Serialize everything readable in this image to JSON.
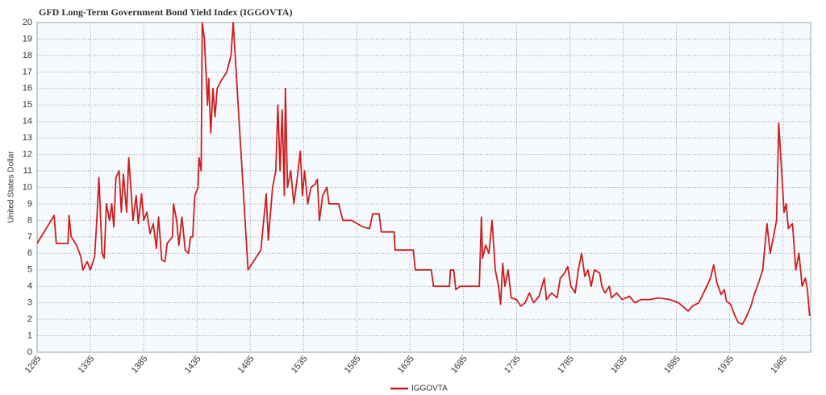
{
  "chart_data": {
    "type": "line",
    "title": "GFD Long-Term Government Bond Yield Index (IGGOVTA)",
    "y_label": "United States Dollar",
    "x": [
      1285,
      1301,
      1303,
      1314,
      1315,
      1317,
      1322,
      1326,
      1328,
      1332,
      1335,
      1339,
      1341,
      1343,
      1346,
      1348,
      1350,
      1353,
      1355,
      1357,
      1359,
      1362,
      1364,
      1366,
      1369,
      1371,
      1373,
      1375,
      1378,
      1380,
      1383,
      1385,
      1388,
      1391,
      1394,
      1397,
      1399,
      1402,
      1405,
      1407,
      1412,
      1413,
      1416,
      1418,
      1421,
      1424,
      1427,
      1429,
      1431,
      1433,
      1436,
      1437,
      1439,
      1440,
      1442,
      1445,
      1446,
      1448,
      1450,
      1452,
      1454,
      1458,
      1463,
      1467,
      1469,
      1483,
      1495,
      1500,
      1502,
      1506,
      1509,
      1511,
      1513,
      1515,
      1517,
      1518,
      1520,
      1523,
      1526,
      1529,
      1532,
      1534,
      1536,
      1539,
      1542,
      1546,
      1548,
      1550,
      1553,
      1557,
      1559,
      1568,
      1572,
      1580,
      1591,
      1597,
      1600,
      1606,
      1608,
      1620,
      1621,
      1638,
      1640,
      1655,
      1657,
      1672,
      1673,
      1676,
      1678,
      1682,
      1700,
      1702,
      1703,
      1706,
      1709,
      1712,
      1715,
      1718,
      1720,
      1722,
      1724,
      1727,
      1730,
      1735,
      1739,
      1743,
      1747,
      1751,
      1756,
      1761,
      1763,
      1768,
      1773,
      1776,
      1780,
      1783,
      1786,
      1790,
      1793,
      1796,
      1799,
      1802,
      1805,
      1808,
      1813,
      1815,
      1818,
      1822,
      1824,
      1829,
      1834,
      1841,
      1846,
      1852,
      1860,
      1868,
      1879,
      1887,
      1896,
      1900,
      1906,
      1912,
      1917,
      1920,
      1923,
      1927,
      1930,
      1932,
      1936,
      1940,
      1943,
      1947,
      1951,
      1955,
      1958,
      1962,
      1966,
      1970,
      1973,
      1976,
      1979,
      1981,
      1983,
      1986,
      1988,
      1990,
      1994,
      1997,
      2000,
      2003,
      2006,
      2008,
      2010
    ],
    "series": [
      {
        "name": "IGGOVTA",
        "color": "#cc1f1f",
        "values": [
          6.6,
          8.3,
          6.6,
          6.6,
          8.3,
          7.0,
          6.5,
          5.8,
          5.0,
          5.5,
          5.0,
          5.8,
          8.0,
          10.6,
          6.0,
          5.7,
          9.0,
          8.0,
          9.0,
          7.6,
          10.6,
          11.0,
          8.5,
          10.8,
          8.5,
          11.8,
          10.0,
          8.0,
          9.5,
          7.8,
          9.6,
          8.0,
          8.5,
          7.2,
          7.8,
          6.3,
          8.2,
          5.6,
          5.5,
          6.6,
          7.0,
          9.0,
          8.0,
          6.5,
          8.2,
          6.2,
          6.0,
          7.0,
          7.0,
          9.5,
          10.0,
          11.8,
          11.0,
          20.0,
          19.0,
          15.0,
          16.6,
          13.3,
          16.0,
          14.3,
          16.0,
          16.5,
          17.0,
          18.0,
          20.0,
          5.0,
          6.2,
          9.6,
          6.8,
          10.0,
          11.0,
          15.0,
          11.0,
          14.7,
          9.5,
          16.0,
          10.0,
          11.0,
          9.0,
          10.5,
          12.2,
          9.5,
          11.0,
          9.0,
          10.0,
          10.2,
          10.5,
          8.0,
          9.5,
          10.0,
          9.0,
          9.0,
          8.0,
          8.0,
          7.6,
          7.5,
          8.4,
          8.4,
          7.3,
          7.3,
          6.2,
          6.2,
          5.0,
          5.0,
          4.0,
          4.0,
          5.0,
          5.0,
          3.8,
          4.0,
          4.0,
          8.2,
          5.7,
          6.5,
          6.0,
          8.0,
          5.0,
          4.0,
          2.9,
          5.4,
          4.0,
          5.0,
          3.3,
          3.2,
          2.8,
          3.0,
          3.6,
          3.0,
          3.4,
          4.5,
          3.2,
          3.6,
          3.3,
          4.5,
          4.8,
          5.2,
          4.0,
          3.6,
          5.0,
          6.0,
          4.6,
          5.0,
          4.0,
          5.0,
          4.8,
          4.0,
          3.6,
          4.0,
          3.3,
          3.6,
          3.2,
          3.4,
          3.0,
          3.2,
          3.2,
          3.3,
          3.2,
          3.0,
          2.5,
          2.8,
          3.0,
          3.8,
          4.5,
          5.3,
          4.2,
          3.5,
          3.8,
          3.1,
          2.9,
          2.2,
          1.8,
          1.7,
          2.2,
          2.8,
          3.5,
          4.2,
          5.0,
          7.8,
          6.0,
          7.0,
          8.0,
          13.9,
          11.8,
          8.5,
          9.0,
          7.5,
          7.8,
          5.0,
          6.0,
          4.0,
          4.5,
          3.8,
          2.2
        ]
      }
    ],
    "xlim": [
      1285,
      2011
    ],
    "ylim": [
      0,
      20
    ],
    "xticks": [
      1285,
      1335,
      1385,
      1435,
      1485,
      1535,
      1585,
      1635,
      1685,
      1735,
      1785,
      1835,
      1885,
      1935,
      1985
    ],
    "yticks": [
      0,
      1,
      2,
      3,
      4,
      5,
      6,
      7,
      8,
      9,
      10,
      11,
      12,
      13,
      14,
      15,
      16,
      17,
      18,
      19,
      20
    ],
    "grid": true,
    "legend": "bottom"
  }
}
